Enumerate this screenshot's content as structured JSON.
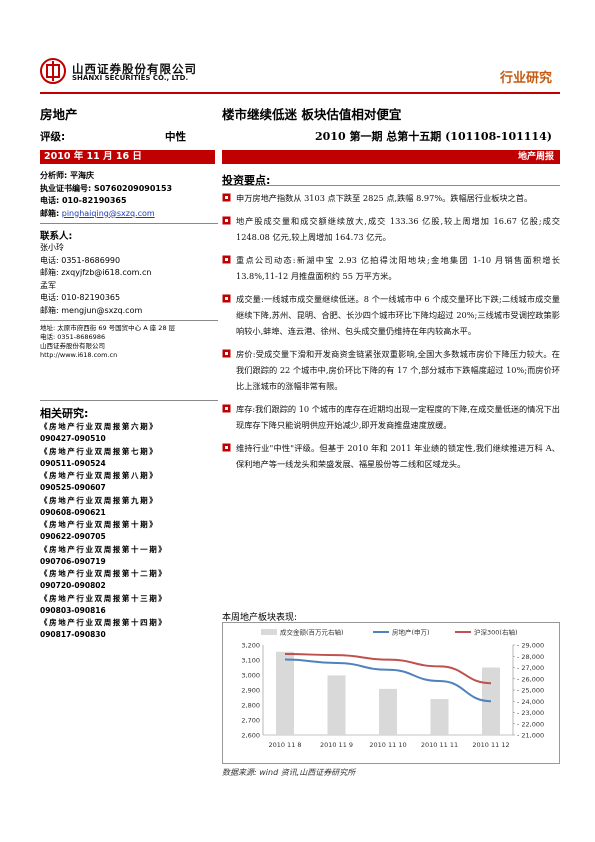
{
  "header": {
    "firm_cn": "山西证券股份有限公司",
    "firm_en": "SHANXI SECURITIES CO., LTD.",
    "doc_type": "行业研究",
    "accent": "#c00000"
  },
  "report": {
    "sector": "房地产",
    "headline": "楼市继续低迷    板块估值相对便宜",
    "rating_label": "评级:",
    "rating_value": "中性",
    "issue": "2010 第一期  总第十五期  (101108-101114)",
    "date": "2010 年 11 月 16 日",
    "report_type": "地产周报"
  },
  "analyst": {
    "name_line": "分析师: 平海庆",
    "cert_line": "执业证书编号:  S0760209090153",
    "tel_line": "电话: 010-82190365",
    "email_label": "邮箱:",
    "email": "pinghaiqing@sxzq.com"
  },
  "contacts": {
    "title": "联系人:",
    "people": [
      {
        "name": "张小玲",
        "tel": "电话: 0351-8686990",
        "email": "邮箱: zxqyjfzb@i618.com.cn"
      },
      {
        "name": "孟军",
        "tel": "电话: 010-82190365",
        "email": "邮箱: mengjun@sxzq.com"
      }
    ]
  },
  "address": {
    "addr": "地址: 太原市府西街 69 号国贸中心 A 座 28 层",
    "tel": "电话: 0351-8686986",
    "company": "山西证券股份有限公司",
    "url": "http://www.i618.com.cn"
  },
  "related": {
    "title": "相关研究:",
    "items": [
      {
        "title": "《房地产行业双周报第六期》",
        "date": "090427-090510"
      },
      {
        "title": "《房地产行业双周报第七期》",
        "date": "090511-090524"
      },
      {
        "title": "《房地产行业双周报第八期》",
        "date": "090525-090607"
      },
      {
        "title": "《房地产行业双周报第九期》",
        "date": "090608-090621"
      },
      {
        "title": "《房地产行业双周报第十期》",
        "date": "090622-090705"
      },
      {
        "title": "《房地产行业双周报第十一期》",
        "date": "090706-090719"
      },
      {
        "title": "《房地产行业双周报第十二期》",
        "date": "090720-090802"
      },
      {
        "title": "《房地产行业双周报第十三期》",
        "date": "090803-090816"
      },
      {
        "title": "《房地产行业双周报第十四期》",
        "date": "090817-090830"
      }
    ]
  },
  "key_points": {
    "title": "投资要点:",
    "items": [
      "申万房地产指数从 3103 点下跌至 2825 点,跌幅 8.97%。跌幅居行业板块之首。",
      "地产股成交量和成交额继续放大,成交 133.36 亿股,较上周增加 16.67 亿股;成交 1248.08 亿元,较上周增加 164.73 亿元。",
      "重点公司动态:新湖中宝 2.93 亿拍得沈阳地块;金地集团 1-10 月销售面积增长 13.8%,11-12 月推盘面积约 55 万平方米。",
      "成交量:一线城市成交量继续低迷。8 个一线城市中 6 个成交量环比下跌;二线城市成交量继续下降,苏州、昆明、合肥、长沙四个城市环比下降均超过 20%;三线城市受调控政策影响较小,蚌埠、连云港、徐州、包头成交量仍维持在年内较高水平。",
      "房价:受成交量下滑和开发商资金链紧张双重影响,全国大多数城市房价下降压力较大。在我们跟踪的 22 个城市中,房价环比下降的有 17 个,部分城市下跌幅度超过 10%;而房价环比上涨城市的涨幅非常有限。",
      "库存:我们跟踪的 10 个城市的库存在近期均出现一定程度的下降,在成交量低迷的情况下出现库存下降只能说明供应开始减少,即开发商推盘速度放缓。",
      "维持行业\"中性\"评级。但基于 2010 年和 2011 年业绩的锁定性,我们继续推进万科 A、保利地产等一线龙头和荣盛发展、福星股份等二线和区域龙头。"
    ]
  },
  "chart_caption": "本周地产板块表现:",
  "chart_source": "数据来源: wind 资讯,山西证券研究所",
  "chart_data": {
    "type": "bar+line",
    "categories": [
      "2010 11 8",
      "2010 11 9",
      "2010 11 10",
      "2010 11 11",
      "2010 11 12"
    ],
    "series": [
      {
        "name": "成交金额(百万元右轴)",
        "kind": "bar",
        "axis": "right",
        "values": [
          28400,
          26300,
          25100,
          24200,
          27000
        ],
        "color": "#d9d9d9"
      },
      {
        "name": "房地产(申万)",
        "kind": "line",
        "axis": "left",
        "values": [
          3103,
          3080,
          3035,
          2960,
          2825
        ],
        "color": "#4f81bd"
      },
      {
        "name": "沪深300(右轴)",
        "kind": "line",
        "axis": "right",
        "values": [
          28200,
          28100,
          27700,
          27100,
          25600
        ],
        "color": "#c0504d"
      }
    ],
    "y_left": {
      "min": 2600,
      "max": 3200,
      "ticks": [
        "3,200",
        "3,100",
        "3,000",
        "2,900",
        "2,800",
        "2,700",
        "2,600"
      ]
    },
    "y_right": {
      "min": 21000,
      "max": 29000,
      "ticks": [
        "29,000",
        "28,000",
        "27,000",
        "26,000",
        "25,000",
        "24,000",
        "23,000",
        "22,000",
        "21,000"
      ]
    },
    "grid": false,
    "legend": "top"
  }
}
